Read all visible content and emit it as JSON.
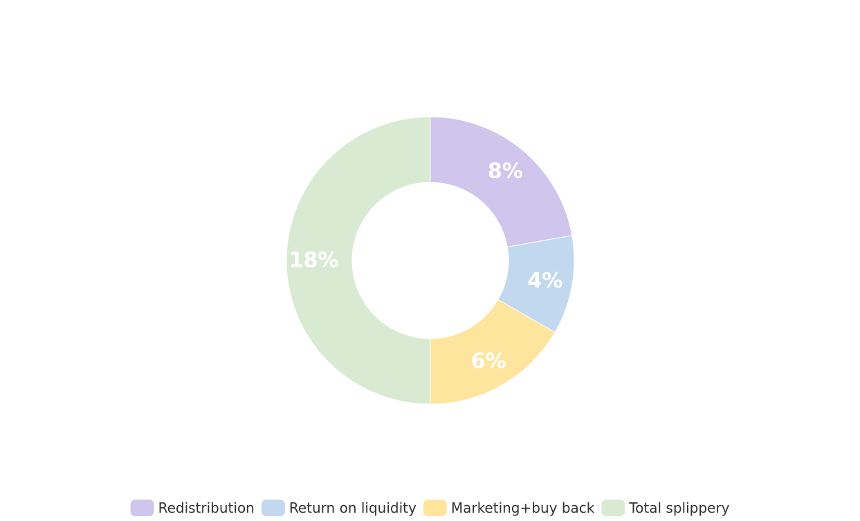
{
  "chart_data": {
    "type": "pie",
    "variant": "doughnut",
    "categories": [
      "Redistribution",
      "Return on liquidity",
      "Marketing+buy back",
      "Total splippery"
    ],
    "values": [
      8,
      4,
      6,
      18
    ],
    "value_labels": [
      "8%",
      "4%",
      "6%",
      "18%"
    ],
    "colors": [
      "#D0C5EC",
      "#C2D8EE",
      "#FEE59D",
      "#D9EAD3"
    ],
    "legend_position": "bottom",
    "title": "",
    "xlabel": "",
    "ylabel": ""
  }
}
